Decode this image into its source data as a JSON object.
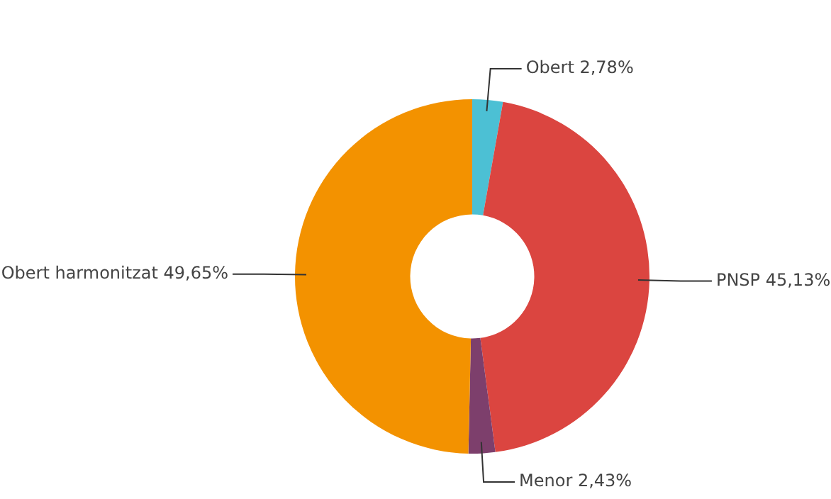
{
  "chart_data": {
    "type": "donut",
    "categories": [
      "Obert",
      "PNSP",
      "Menor",
      "Obert harmonitzat"
    ],
    "values": [
      2.78,
      45.13,
      2.43,
      49.65
    ],
    "colors": [
      "#4cc0d4",
      "#db4540",
      "#7d3f6c",
      "#f39200"
    ],
    "value_labels": [
      "2,78%",
      "45,13%",
      "2,43%",
      "49,65%"
    ],
    "legend": false
  }
}
